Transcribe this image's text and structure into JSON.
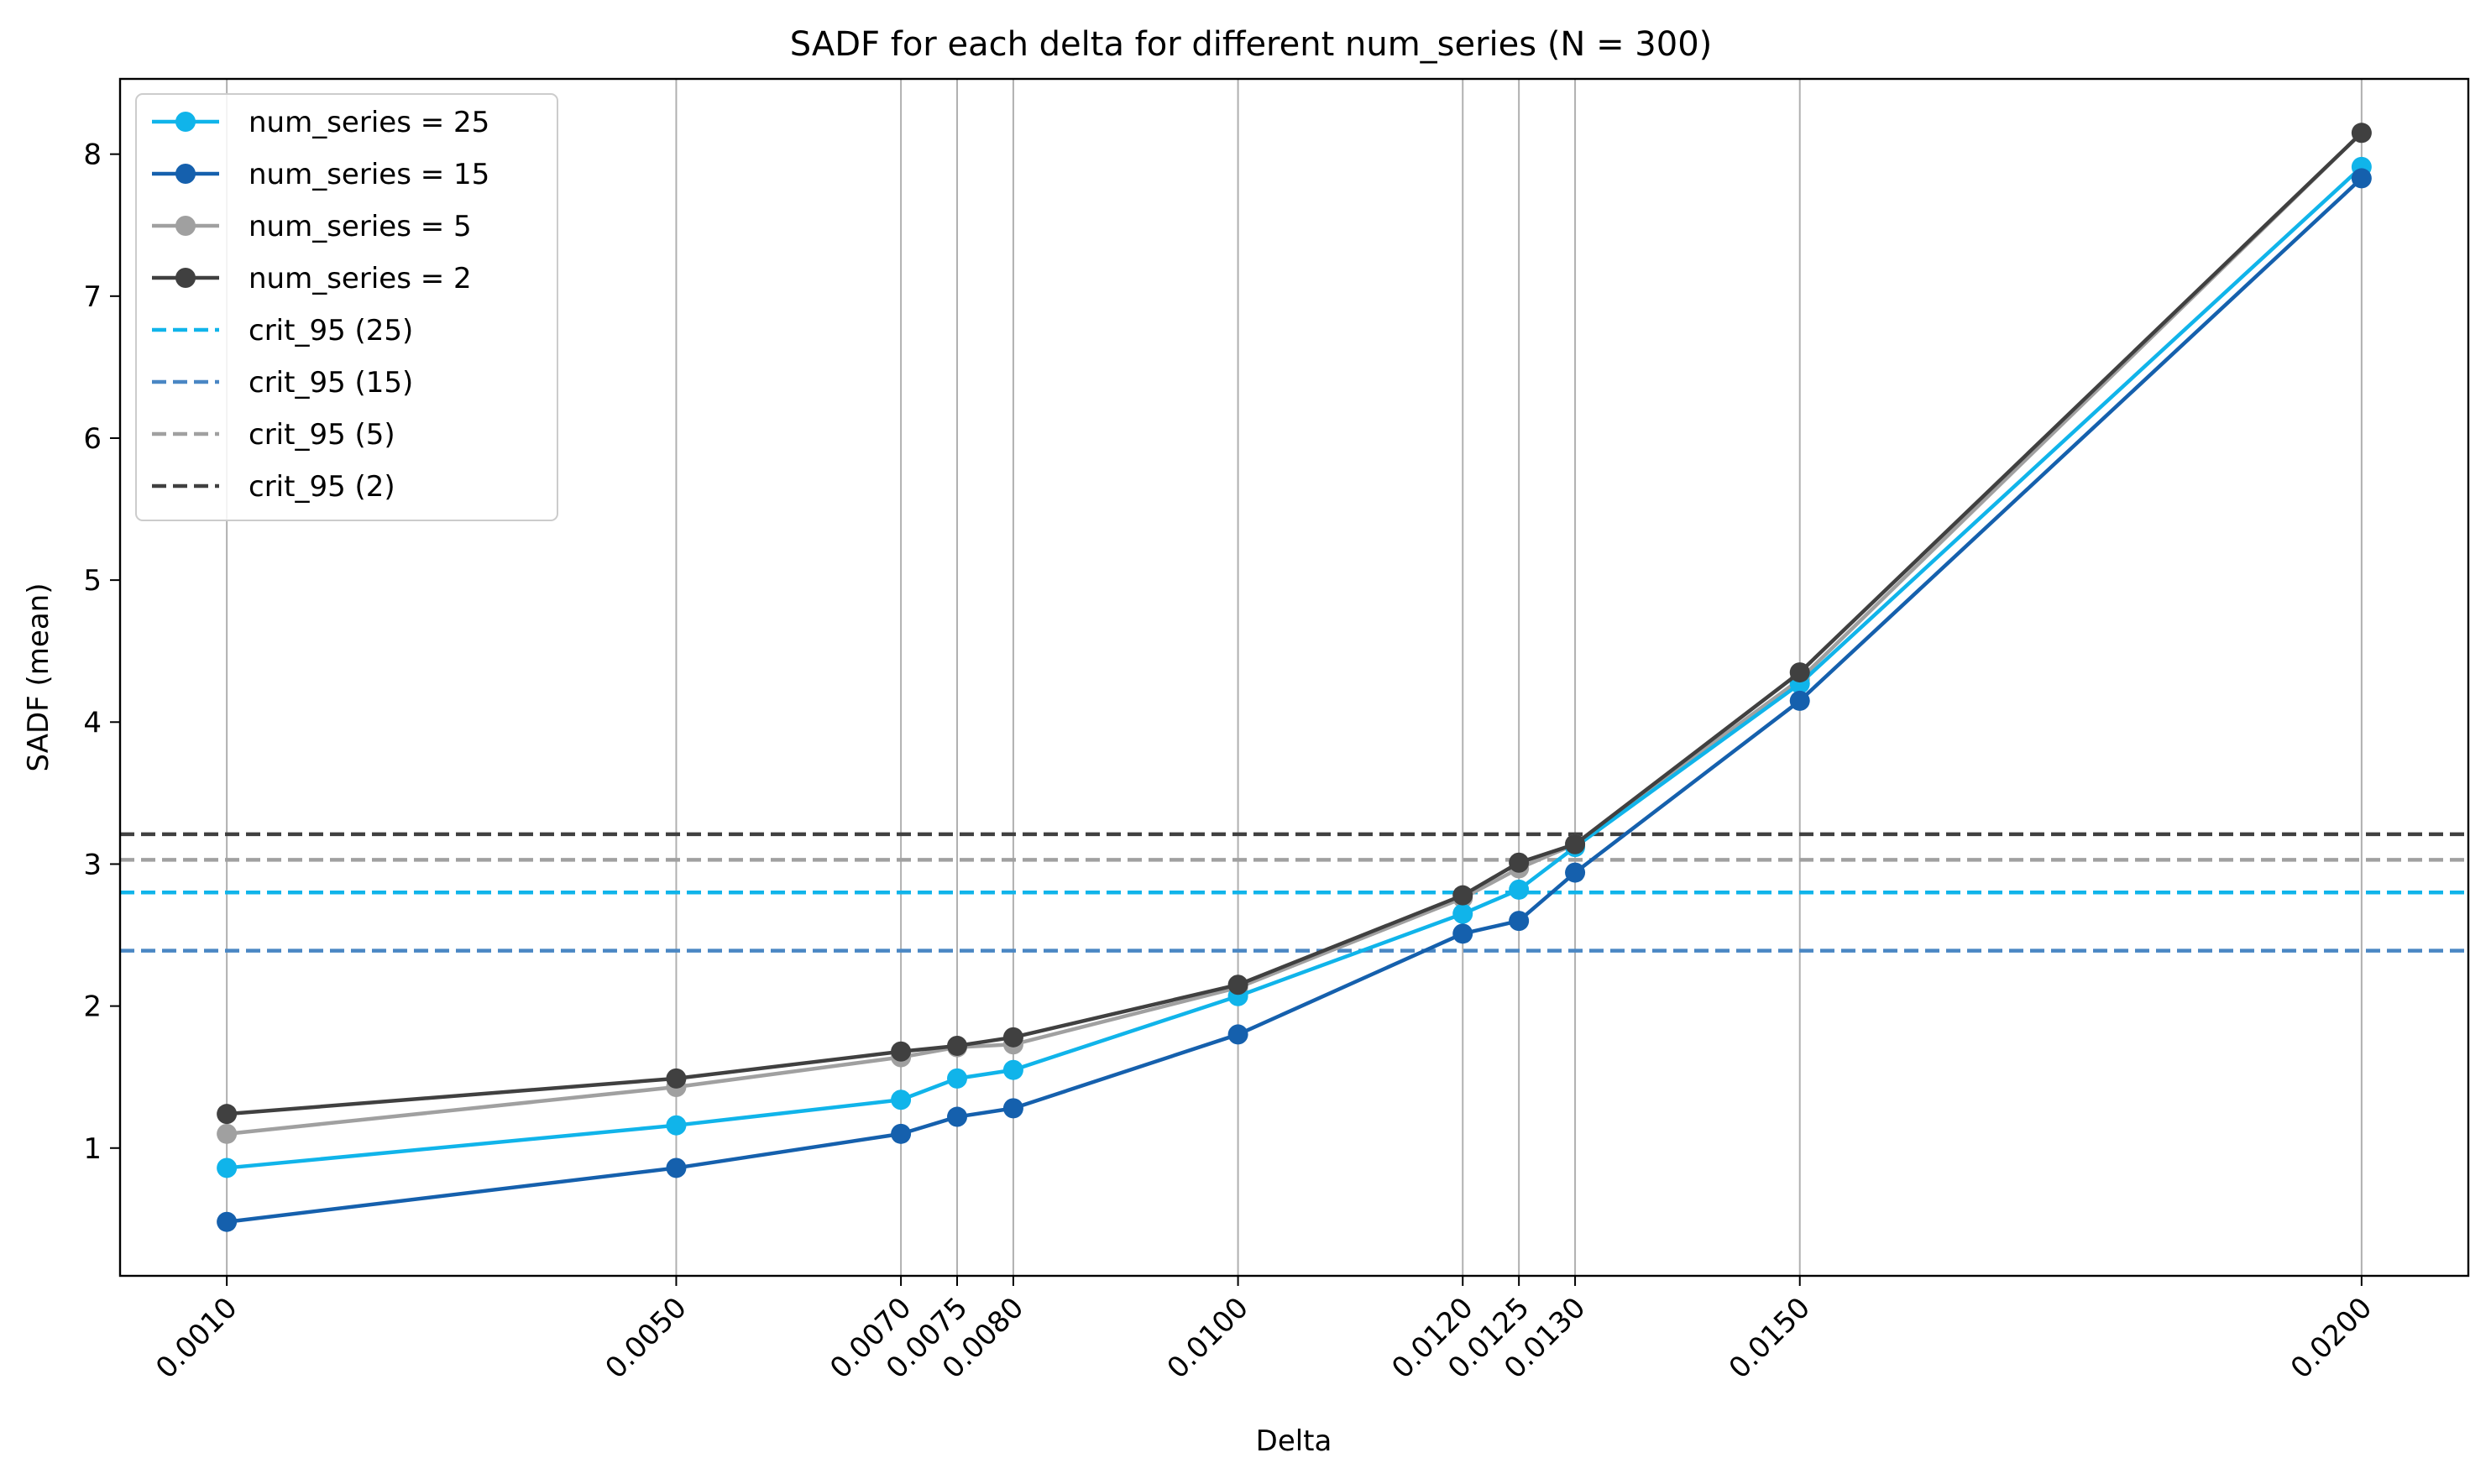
{
  "chart_data": {
    "type": "line",
    "title": "SADF for each delta for different num_series (N = 300)",
    "xlabel": "Delta",
    "ylabel": "SADF (mean)",
    "x": [
      0.001,
      0.005,
      0.007,
      0.0075,
      0.008,
      0.01,
      0.012,
      0.0125,
      0.013,
      0.015,
      0.02
    ],
    "x_tick_labels": [
      "0.0010",
      "0.0050",
      "0.0070",
      "0.0075",
      "0.0080",
      "0.0100",
      "0.0120",
      "0.0125",
      "0.0130",
      "0.0150",
      "0.0200"
    ],
    "y_ticks": [
      1,
      2,
      3,
      4,
      5,
      6,
      7,
      8
    ],
    "xlim": [
      5e-05,
      0.02095
    ],
    "ylim": [
      0.1,
      8.53
    ],
    "grid": "vertical lines at each delta",
    "legend_position": "top-left",
    "series": [
      {
        "name": "num_series = 25",
        "color": "#10b4ea",
        "values": [
          0.86,
          1.16,
          1.34,
          1.49,
          1.55,
          2.07,
          2.65,
          2.82,
          3.12,
          4.27,
          7.91
        ]
      },
      {
        "name": "num_series = 15",
        "color": "#1560ad",
        "values": [
          0.48,
          0.86,
          1.1,
          1.22,
          1.28,
          1.8,
          2.51,
          2.6,
          2.94,
          4.15,
          7.83
        ]
      },
      {
        "name": "num_series = 5",
        "color": "#a0a0a0",
        "values": [
          1.1,
          1.43,
          1.64,
          1.71,
          1.73,
          2.13,
          2.76,
          2.97,
          3.14,
          4.3,
          8.15
        ]
      },
      {
        "name": "num_series = 2",
        "color": "#404040",
        "values": [
          1.24,
          1.49,
          1.68,
          1.72,
          1.78,
          2.15,
          2.78,
          3.01,
          3.14,
          4.35,
          8.15
        ]
      }
    ],
    "reference_lines": [
      {
        "name": "crit_95 (25)",
        "color": "#10b4ea",
        "y": 2.8
      },
      {
        "name": "crit_95 (15)",
        "color": "#4a87c4",
        "y": 2.39
      },
      {
        "name": "crit_95 (5)",
        "color": "#a0a0a0",
        "y": 3.03
      },
      {
        "name": "crit_95 (2)",
        "color": "#404040",
        "y": 3.21
      }
    ]
  }
}
